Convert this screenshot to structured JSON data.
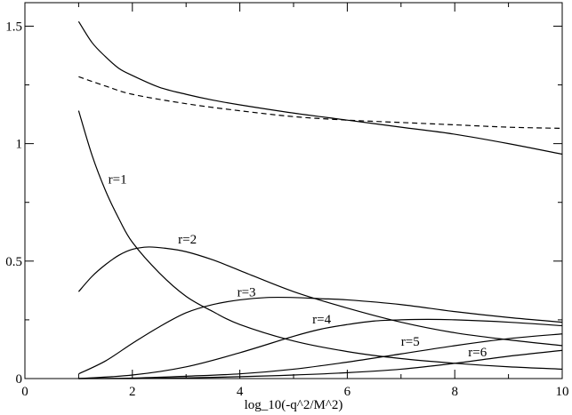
{
  "chart_data": {
    "type": "line",
    "title": "",
    "xlabel": "log_10(-q^2/M^2)",
    "ylabel": "",
    "xlim": [
      0,
      10
    ],
    "ylim": [
      0,
      1.6
    ],
    "xticks": [
      0,
      2,
      4,
      6,
      8,
      10
    ],
    "yticks": [
      0,
      0.5,
      1,
      1.5
    ],
    "x_tick_labels": [
      "0",
      "2",
      "4",
      "6",
      "8",
      "10"
    ],
    "y_tick_labels": [
      "0",
      "0.5",
      "1",
      "1.5"
    ],
    "grid": false,
    "legend": "none",
    "series": [
      {
        "style": "solid",
        "x": [
          1,
          1.25,
          1.5,
          1.75,
          2,
          2.5,
          3,
          3.5,
          4,
          5,
          6,
          7,
          8,
          9,
          10
        ],
        "y": [
          1.52,
          1.43,
          1.37,
          1.32,
          1.29,
          1.24,
          1.21,
          1.185,
          1.165,
          1.13,
          1.1,
          1.07,
          1.04,
          1.0,
          0.955
        ]
      },
      {
        "style": "dashed",
        "x": [
          1,
          1.5,
          2,
          3,
          4,
          5,
          6,
          7,
          8,
          9,
          10
        ],
        "y": [
          1.285,
          1.245,
          1.21,
          1.17,
          1.14,
          1.115,
          1.1,
          1.09,
          1.08,
          1.07,
          1.065
        ]
      },
      {
        "style": "solid",
        "label": "r=1",
        "x": [
          1,
          1.25,
          1.5,
          1.75,
          2,
          2.5,
          3,
          3.5,
          4,
          5,
          6,
          7,
          8,
          9,
          10
        ],
        "y": [
          1.14,
          0.95,
          0.8,
          0.68,
          0.58,
          0.45,
          0.35,
          0.285,
          0.23,
          0.16,
          0.115,
          0.085,
          0.065,
          0.05,
          0.04
        ]
      },
      {
        "style": "solid",
        "label": "r=2",
        "x": [
          1,
          1.25,
          1.5,
          1.75,
          2,
          2.3,
          2.6,
          3,
          3.5,
          4,
          5,
          6,
          7,
          8,
          9,
          10
        ],
        "y": [
          0.37,
          0.435,
          0.485,
          0.525,
          0.55,
          0.56,
          0.555,
          0.54,
          0.505,
          0.46,
          0.37,
          0.3,
          0.24,
          0.195,
          0.165,
          0.14
        ]
      },
      {
        "style": "solid",
        "label": "r=3",
        "x": [
          1,
          1.5,
          2,
          2.5,
          3,
          3.5,
          4,
          4.5,
          5,
          5.5,
          6,
          7,
          8,
          9,
          10
        ],
        "y": [
          0.02,
          0.075,
          0.15,
          0.22,
          0.28,
          0.315,
          0.335,
          0.345,
          0.345,
          0.34,
          0.335,
          0.315,
          0.285,
          0.26,
          0.24
        ]
      },
      {
        "style": "solid",
        "label": "r=4",
        "x": [
          1,
          2,
          3,
          4,
          5,
          5.5,
          6,
          6.5,
          7,
          7.5,
          8,
          9,
          10
        ],
        "y": [
          0.0,
          0.015,
          0.05,
          0.11,
          0.18,
          0.21,
          0.23,
          0.245,
          0.25,
          0.252,
          0.25,
          0.24,
          0.225
        ]
      },
      {
        "style": "solid",
        "label": "r=5",
        "x": [
          1,
          2,
          3,
          4,
          5,
          6,
          7,
          8,
          9,
          10
        ],
        "y": [
          0.0,
          0.002,
          0.01,
          0.02,
          0.04,
          0.07,
          0.105,
          0.14,
          0.17,
          0.19
        ]
      },
      {
        "style": "solid",
        "label": "r=6",
        "x": [
          1,
          2,
          3,
          4,
          5,
          6,
          7,
          8,
          9,
          10
        ],
        "y": [
          0.0,
          0.0,
          0.003,
          0.008,
          0.015,
          0.025,
          0.04,
          0.065,
          0.095,
          0.12
        ]
      }
    ],
    "annotations": [
      {
        "text": "r=1",
        "x": 1.55,
        "y": 0.83
      },
      {
        "text": "r=2",
        "x": 2.85,
        "y": 0.575
      },
      {
        "text": "r=3",
        "x": 3.95,
        "y": 0.35
      },
      {
        "text": "r=4",
        "x": 5.35,
        "y": 0.235
      },
      {
        "text": "r=5",
        "x": 7.0,
        "y": 0.14
      },
      {
        "text": "r=6",
        "x": 8.25,
        "y": 0.095
      }
    ]
  }
}
